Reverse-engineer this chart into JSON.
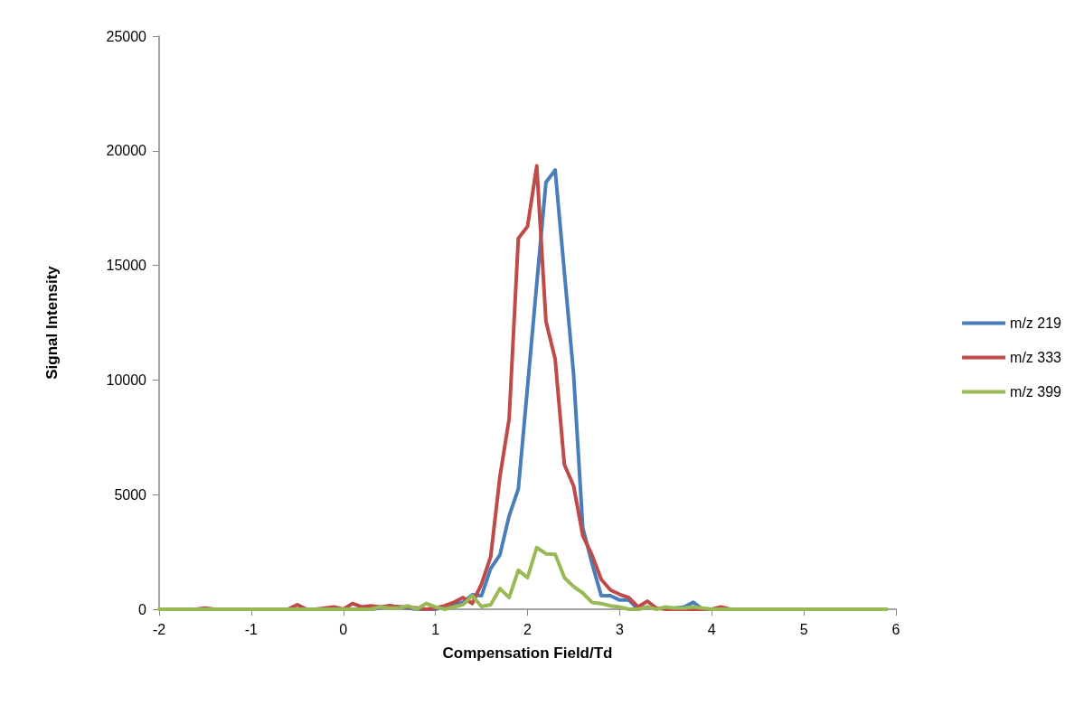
{
  "chart_data": {
    "type": "line",
    "xlabel": "Compensation Field/Td",
    "ylabel": "Signal Intensity",
    "x": [
      -2,
      -1.9,
      -1.8,
      -1.7,
      -1.6,
      -1.5,
      -1.4,
      -1.3,
      -1.2,
      -1.1,
      -1,
      -0.9,
      -0.8,
      -0.7,
      -0.6,
      -0.5,
      -0.4,
      -0.3,
      -0.2,
      -0.1,
      0,
      0.1,
      0.2,
      0.3,
      0.4,
      0.5,
      0.6,
      0.7,
      0.8,
      0.9,
      1,
      1.1,
      1.2,
      1.3,
      1.4,
      1.5,
      1.6,
      1.7,
      1.8,
      1.9,
      2,
      2.1,
      2.2,
      2.3,
      2.4,
      2.5,
      2.6,
      2.7,
      2.8,
      2.9,
      3,
      3.1,
      3.2,
      3.3,
      3.4,
      3.5,
      3.6,
      3.7,
      3.8,
      3.9,
      4,
      4.1,
      4.2,
      4.3,
      4.4,
      4.5,
      4.6,
      4.7,
      4.8,
      4.9,
      5,
      5.1,
      5.2,
      5.3,
      5.4,
      5.5,
      5.6,
      5.7,
      5.8,
      5.9
    ],
    "series": [
      {
        "name": "m/z 219",
        "color": "#4a7ebb",
        "values": [
          null,
          null,
          null,
          null,
          null,
          null,
          null,
          null,
          null,
          null,
          null,
          null,
          null,
          null,
          null,
          null,
          null,
          null,
          null,
          null,
          null,
          null,
          null,
          0,
          50,
          150,
          100,
          50,
          0,
          0,
          0,
          100,
          200,
          300,
          630,
          590,
          1780,
          2370,
          4070,
          5250,
          9700,
          14200,
          18620,
          19160,
          14700,
          10260,
          3550,
          2000,
          590,
          590,
          400,
          400,
          0,
          100,
          null,
          null,
          50,
          100,
          300,
          0,
          null,
          null,
          null,
          null,
          null,
          null,
          null,
          null,
          null,
          null,
          null,
          null,
          null,
          null,
          null,
          null,
          null,
          null,
          null,
          null
        ]
      },
      {
        "name": "m/z 333",
        "color": "#be4b48",
        "values": [
          null,
          null,
          null,
          0,
          0,
          50,
          0,
          0,
          0,
          0,
          0,
          0,
          0,
          0,
          0,
          200,
          0,
          0,
          50,
          100,
          0,
          250,
          100,
          150,
          100,
          150,
          100,
          100,
          50,
          0,
          50,
          150,
          300,
          510,
          250,
          1100,
          2290,
          5780,
          8300,
          16180,
          16700,
          19340,
          12560,
          10910,
          6310,
          5380,
          3210,
          2370,
          1300,
          840,
          650,
          510,
          100,
          350,
          50,
          0,
          0,
          0,
          0,
          0,
          0,
          100,
          0,
          0,
          null,
          null,
          null,
          null,
          null,
          null,
          null,
          null,
          null,
          null,
          null,
          null,
          null,
          null,
          null,
          null
        ]
      },
      {
        "name": "m/z 399",
        "color": "#98b954",
        "values": [
          0,
          0,
          0,
          0,
          0,
          0,
          0,
          0,
          0,
          0,
          0,
          0,
          0,
          0,
          0,
          0,
          0,
          0,
          0,
          0,
          0,
          0,
          0,
          0,
          100,
          50,
          50,
          150,
          0,
          250,
          100,
          0,
          100,
          200,
          590,
          120,
          200,
          900,
          510,
          1700,
          1380,
          2690,
          2420,
          2400,
          1380,
          990,
          710,
          300,
          250,
          150,
          100,
          0,
          0,
          100,
          0,
          100,
          50,
          50,
          100,
          50,
          0,
          0,
          0,
          0,
          0,
          0,
          0,
          0,
          0,
          0,
          0,
          0,
          0,
          0,
          0,
          0,
          0,
          0,
          0,
          0
        ]
      }
    ],
    "xlim": [
      -2,
      6
    ],
    "xticks": [
      -2,
      -1,
      0,
      1,
      2,
      3,
      4,
      5,
      6
    ],
    "ylim": [
      0,
      25000
    ],
    "yticks": [
      {
        "value": 0,
        "label": "0"
      },
      {
        "value": 5000,
        "label": "5000"
      },
      {
        "value": 10000,
        "label": "10000"
      },
      {
        "value": 15000,
        "label": "15000"
      },
      {
        "value": 20000,
        "label": "20000"
      },
      {
        "value": 25000,
        "label": "25000"
      }
    ],
    "grid": false,
    "legend": "right",
    "marker": "none",
    "line_style": "solid"
  }
}
